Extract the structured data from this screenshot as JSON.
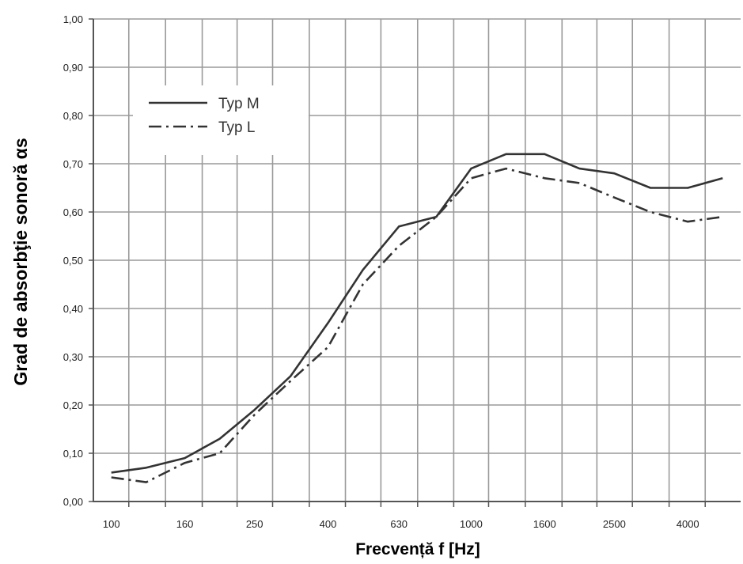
{
  "chart_data": {
    "type": "line",
    "title": "",
    "xlabel": "Frecvență f [Hz]",
    "ylabel": "Grad de absorbţie sonoră αs",
    "x_scale": "log",
    "x_tick_labels": [
      "100",
      "160",
      "250",
      "400",
      "630",
      "1000",
      "1600",
      "2500",
      "4000"
    ],
    "y_ticks": [
      0.0,
      0.1,
      0.2,
      0.3,
      0.4,
      0.5,
      0.6,
      0.7,
      0.8,
      0.9,
      1.0
    ],
    "y_tick_labels": [
      "0,00",
      "0,10",
      "0,20",
      "0,30",
      "0,40",
      "0,50",
      "0,60",
      "0,70",
      "0,80",
      "0,90",
      "1,00"
    ],
    "ylim": [
      0,
      1.0
    ],
    "grid": true,
    "legend_position": "top-left",
    "x": [
      100,
      125,
      160,
      200,
      250,
      315,
      400,
      500,
      630,
      800,
      1000,
      1250,
      1600,
      2000,
      2500,
      3150,
      4000,
      5000
    ],
    "series": [
      {
        "name": "Typ M",
        "style": "solid",
        "color": "#333333",
        "values": [
          0.06,
          0.07,
          0.09,
          0.13,
          0.19,
          0.26,
          0.37,
          0.48,
          0.57,
          0.59,
          0.69,
          0.72,
          0.72,
          0.69,
          0.68,
          0.65,
          0.65,
          0.67
        ]
      },
      {
        "name": "Typ L",
        "style": "dashdot",
        "color": "#333333",
        "values": [
          0.05,
          0.04,
          0.08,
          0.1,
          0.18,
          0.25,
          0.32,
          0.45,
          0.53,
          0.59,
          0.67,
          0.69,
          0.67,
          0.66,
          0.63,
          0.6,
          0.58,
          0.59
        ]
      }
    ]
  }
}
